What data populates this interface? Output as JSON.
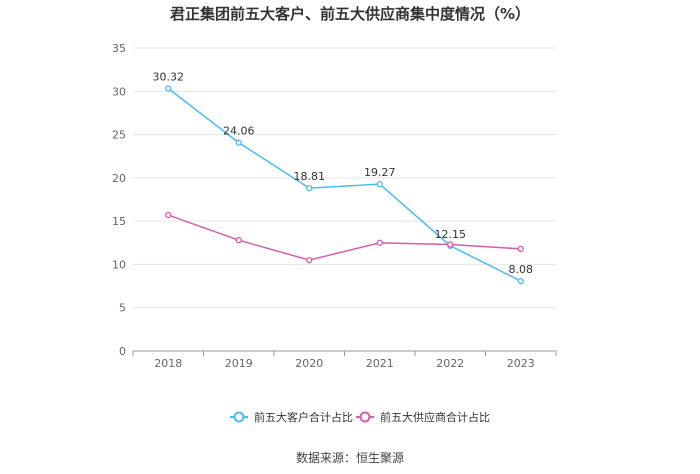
{
  "chart_data": {
    "type": "line",
    "title": "君正集团前五大客户、前五大供应商集中度情况（%）",
    "categories": [
      "2018",
      "2019",
      "2020",
      "2021",
      "2022",
      "2023"
    ],
    "y_ticks": [
      "0",
      "5",
      "10",
      "15",
      "20",
      "25",
      "30",
      "35"
    ],
    "ylim": [
      0,
      35
    ],
    "series": [
      {
        "name": "前五大客户合计占比",
        "color": "#4dbbee",
        "values": [
          30.32,
          24.06,
          18.81,
          19.27,
          12.15,
          8.08
        ],
        "labels": [
          "30.32",
          "24.06",
          "18.81",
          "19.27",
          "12.15",
          "8.08"
        ]
      },
      {
        "name": "前五大供应商合计占比",
        "color": "#d45fa8",
        "values": [
          15.7,
          12.8,
          10.5,
          12.5,
          12.3,
          11.8
        ]
      }
    ],
    "legend_position": "bottom",
    "grid": true
  },
  "source": "数据来源：恒生聚源"
}
